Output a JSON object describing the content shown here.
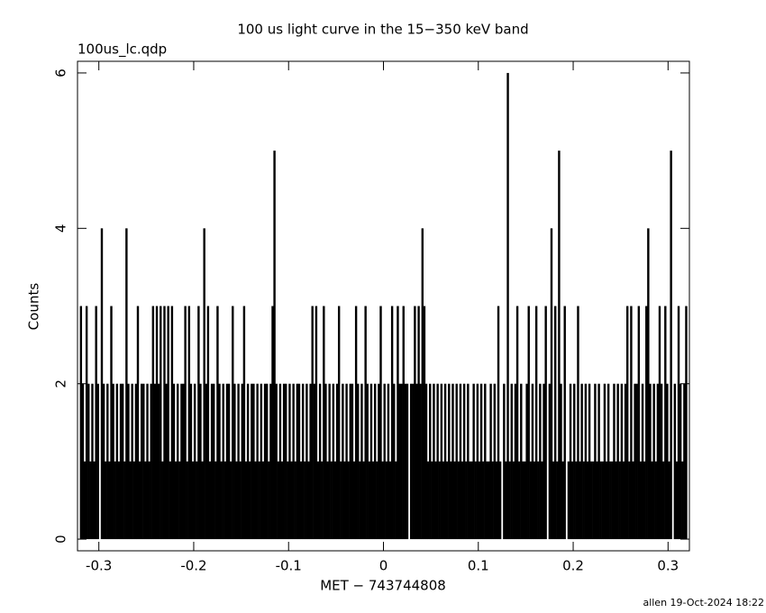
{
  "chart_data": {
    "type": "histogram",
    "title": "100 us light curve in the 15−350 keV band",
    "subtitle": "100us_lc.qdp",
    "x_label": "MET − 743744808",
    "y_label": "Counts",
    "footer": "allen 19-Oct-2024 18:22",
    "color": "#000000",
    "xlim": [
      -0.3225,
      0.3225
    ],
    "ylim": [
      -0.15,
      6.15
    ],
    "xticks": [
      -0.3,
      -0.2,
      -0.1,
      0,
      0.1,
      0.2,
      0.3
    ],
    "yticks": [
      0,
      2,
      4,
      6
    ],
    "bins": [
      -0.32,
      -0.318,
      -0.316,
      -0.314,
      -0.312,
      -0.31,
      -0.308,
      -0.306,
      -0.304,
      -0.302,
      -0.3,
      -0.298,
      -0.296,
      -0.294,
      -0.292,
      -0.29,
      -0.288,
      -0.286,
      -0.284,
      -0.282,
      -0.28,
      -0.278,
      -0.276,
      -0.274,
      -0.272,
      -0.27,
      -0.268,
      -0.266,
      -0.264,
      -0.262,
      -0.26,
      -0.258,
      -0.256,
      -0.254,
      -0.252,
      -0.25,
      -0.248,
      -0.246,
      -0.244,
      -0.242,
      -0.24,
      -0.238,
      -0.236,
      -0.234,
      -0.232,
      -0.23,
      -0.228,
      -0.226,
      -0.224,
      -0.222,
      -0.22,
      -0.218,
      -0.216,
      -0.214,
      -0.212,
      -0.21,
      -0.208,
      -0.206,
      -0.204,
      -0.202,
      -0.2,
      -0.198,
      -0.196,
      -0.194,
      -0.192,
      -0.19,
      -0.188,
      -0.186,
      -0.184,
      -0.182,
      -0.18,
      -0.178,
      -0.176,
      -0.174,
      -0.172,
      -0.17,
      -0.168,
      -0.166,
      -0.164,
      -0.162,
      -0.16,
      -0.158,
      -0.156,
      -0.154,
      -0.152,
      -0.15,
      -0.148,
      -0.146,
      -0.144,
      -0.142,
      -0.14,
      -0.138,
      -0.136,
      -0.134,
      -0.132,
      -0.13,
      -0.128,
      -0.126,
      -0.124,
      -0.122,
      -0.12,
      -0.118,
      -0.116,
      -0.114,
      -0.112,
      -0.11,
      -0.108,
      -0.106,
      -0.104,
      -0.102,
      -0.1,
      -0.098,
      -0.096,
      -0.094,
      -0.092,
      -0.09,
      -0.088,
      -0.086,
      -0.084,
      -0.082,
      -0.08,
      -0.078,
      -0.076,
      -0.074,
      -0.072,
      -0.07,
      -0.068,
      -0.066,
      -0.064,
      -0.062,
      -0.06,
      -0.058,
      -0.056,
      -0.054,
      -0.052,
      -0.05,
      -0.048,
      -0.046,
      -0.044,
      -0.042,
      -0.04,
      -0.038,
      -0.036,
      -0.034,
      -0.032,
      -0.03,
      -0.028,
      -0.026,
      -0.024,
      -0.022,
      -0.02,
      -0.018,
      -0.016,
      -0.014,
      -0.012,
      -0.01,
      -0.008,
      -0.006,
      -0.004,
      -0.002,
      0,
      0.002,
      0.004,
      0.006,
      0.008,
      0.01,
      0.012,
      0.014,
      0.016,
      0.018,
      0.02,
      0.022,
      0.024,
      0.026,
      0.028,
      0.03,
      0.032,
      0.034,
      0.036,
      0.038,
      0.04,
      0.042,
      0.044,
      0.046,
      0.048,
      0.05,
      0.052,
      0.054,
      0.056,
      0.058,
      0.06,
      0.062,
      0.064,
      0.066,
      0.068,
      0.07,
      0.072,
      0.074,
      0.076,
      0.078,
      0.08,
      0.082,
      0.084,
      0.086,
      0.088,
      0.09,
      0.092,
      0.094,
      0.096,
      0.098,
      0.1,
      0.102,
      0.104,
      0.106,
      0.108,
      0.11,
      0.112,
      0.114,
      0.116,
      0.118,
      0.12,
      0.122,
      0.124,
      0.126,
      0.128,
      0.13,
      0.132,
      0.134,
      0.136,
      0.138,
      0.14,
      0.142,
      0.144,
      0.146,
      0.148,
      0.15,
      0.152,
      0.154,
      0.156,
      0.158,
      0.16,
      0.162,
      0.164,
      0.166,
      0.168,
      0.17,
      0.172,
      0.174,
      0.176,
      0.178,
      0.18,
      0.182,
      0.184,
      0.186,
      0.188,
      0.19,
      0.192,
      0.194,
      0.196,
      0.198,
      0.2,
      0.202,
      0.204,
      0.206,
      0.208,
      0.21,
      0.212,
      0.214,
      0.216,
      0.218,
      0.22,
      0.222,
      0.224,
      0.226,
      0.228,
      0.23,
      0.232,
      0.234,
      0.236,
      0.238,
      0.24,
      0.242,
      0.244,
      0.246,
      0.248,
      0.25,
      0.252,
      0.254,
      0.256,
      0.258,
      0.26,
      0.262,
      0.264,
      0.266,
      0.268,
      0.27,
      0.272,
      0.274,
      0.276,
      0.278,
      0.28,
      0.282,
      0.284,
      0.286,
      0.288,
      0.29,
      0.292,
      0.294,
      0.296,
      0.298,
      0.3,
      0.302,
      0.304,
      0.306,
      0.308,
      0.31,
      0.312,
      0.314,
      0.316,
      0.318,
      0.32
    ],
    "values": [
      3,
      2,
      1,
      3,
      2,
      1,
      2,
      1,
      3,
      2,
      0,
      4,
      2,
      1,
      2,
      1,
      3,
      2,
      1,
      2,
      1,
      2,
      2,
      1,
      4,
      2,
      1,
      2,
      1,
      2,
      3,
      1,
      2,
      2,
      1,
      2,
      1,
      2,
      3,
      2,
      3,
      2,
      3,
      1,
      3,
      2,
      3,
      1,
      3,
      2,
      1,
      2,
      1,
      2,
      2,
      3,
      1,
      3,
      2,
      1,
      2,
      1,
      3,
      2,
      1,
      4,
      2,
      3,
      1,
      2,
      2,
      1,
      3,
      2,
      1,
      2,
      1,
      2,
      2,
      1,
      3,
      2,
      1,
      2,
      1,
      2,
      3,
      1,
      2,
      1,
      2,
      2,
      1,
      2,
      1,
      2,
      1,
      2,
      2,
      1,
      2,
      3,
      5,
      2,
      1,
      2,
      1,
      2,
      2,
      1,
      2,
      1,
      2,
      1,
      2,
      2,
      1,
      2,
      1,
      2,
      1,
      2,
      3,
      2,
      3,
      1,
      2,
      1,
      3,
      2,
      1,
      2,
      1,
      2,
      1,
      2,
      3,
      1,
      2,
      1,
      2,
      1,
      2,
      2,
      1,
      3,
      2,
      1,
      2,
      1,
      3,
      2,
      1,
      2,
      1,
      2,
      1,
      2,
      3,
      1,
      2,
      1,
      2,
      1,
      3,
      2,
      1,
      3,
      2,
      2,
      3,
      2,
      2,
      0,
      2,
      2,
      3,
      2,
      3,
      2,
      4,
      3,
      2,
      1,
      2,
      1,
      2,
      1,
      2,
      1,
      2,
      1,
      2,
      1,
      2,
      1,
      2,
      1,
      2,
      1,
      2,
      1,
      2,
      1,
      2,
      1,
      1,
      2,
      1,
      2,
      1,
      2,
      1,
      2,
      1,
      1,
      2,
      1,
      2,
      1,
      3,
      1,
      0,
      2,
      1,
      6,
      1,
      2,
      1,
      2,
      3,
      1,
      2,
      1,
      1,
      2,
      3,
      1,
      2,
      1,
      3,
      1,
      2,
      1,
      2,
      3,
      0,
      2,
      4,
      1,
      3,
      1,
      5,
      2,
      1,
      3,
      0,
      1,
      2,
      1,
      2,
      1,
      3,
      1,
      2,
      1,
      2,
      1,
      2,
      1,
      1,
      2,
      1,
      2,
      1,
      1,
      2,
      1,
      2,
      1,
      1,
      2,
      1,
      2,
      1,
      2,
      1,
      2,
      3,
      1,
      3,
      1,
      2,
      2,
      3,
      1,
      2,
      1,
      3,
      4,
      2,
      1,
      2,
      1,
      2,
      3,
      2,
      1,
      3,
      2,
      1,
      5,
      0,
      2,
      1,
      3,
      2,
      1,
      2,
      3
    ]
  }
}
